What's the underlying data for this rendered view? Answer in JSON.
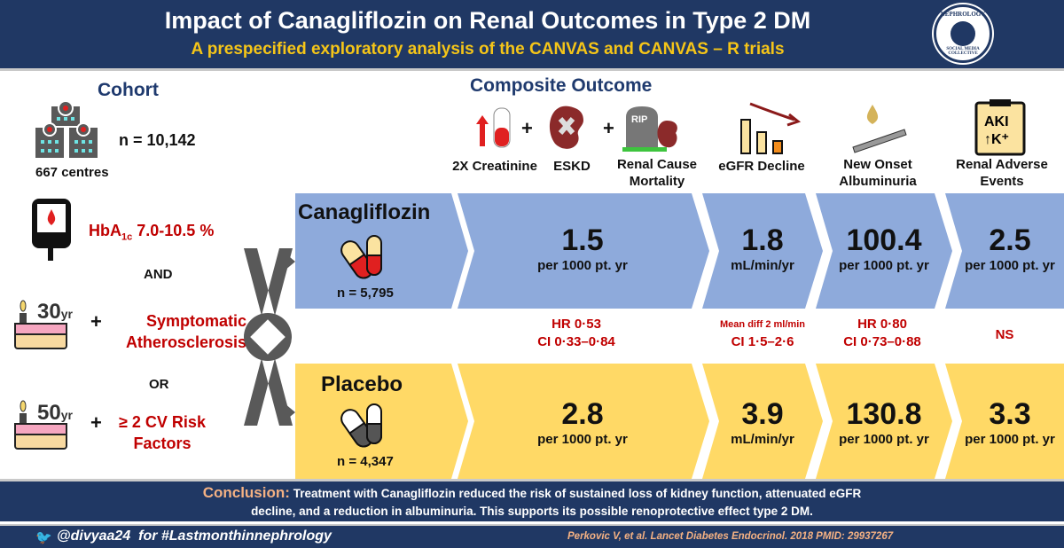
{
  "header": {
    "title": "Impact of Canagliflozin on Renal Outcomes in Type 2 DM",
    "subtitle": "A prespecified exploratory analysis of the CANVAS and CANVAS – R trials",
    "logo_text": "NEPHROLOGY",
    "logo_est": "EST 2015",
    "logo_bottom": "SOCIAL MEDIA COLLECTIVE"
  },
  "cohort": {
    "title": "Cohort",
    "n": "n = 10,142",
    "centres": "667 centres",
    "hba1c_label": "HbA",
    "hba1c_sub": "1c",
    "hba1c_range": "7.0-10.5 %",
    "and": "AND",
    "age1": "30",
    "age_unit": "yr",
    "criterion1": "Symptomatic Atherosclerosis",
    "or": "OR",
    "age2": "50",
    "criterion2": "≥ 2 CV Risk Factors",
    "plus": "+"
  },
  "outcomes": {
    "title": "Composite Outcome",
    "items": [
      "2X Creatinine",
      "ESKD",
      "Renal Cause Mortality",
      "eGFR Decline",
      "New Onset Albuminuria",
      "Renal Adverse Events"
    ],
    "rip": "RIP",
    "aki": "AKI",
    "k": "↑K⁺"
  },
  "arms": [
    {
      "name": "Canagliflozin",
      "n": "n = 5,795",
      "values": [
        {
          "v": "1.5",
          "u": "per 1000 pt. yr"
        },
        {
          "v": "1.8",
          "u": "mL/min/yr"
        },
        {
          "v": "100.4",
          "u": "per 1000 pt. yr"
        },
        {
          "v": "2.5",
          "u": "per 1000 pt. yr"
        }
      ]
    },
    {
      "name": "Placebo",
      "n": "n = 4,347",
      "values": [
        {
          "v": "2.8",
          "u": "per 1000 pt. yr"
        },
        {
          "v": "3.9",
          "u": "mL/min/yr"
        },
        {
          "v": "130.8",
          "u": "per 1000 pt. yr"
        },
        {
          "v": "3.3",
          "u": "per 1000 pt. yr"
        }
      ]
    }
  ],
  "stats": [
    {
      "l1": "HR 0·53",
      "l2": "CI 0·33–0·84"
    },
    {
      "l1": "Mean diff 2 ml/min",
      "l2": "CI 1·5–2·6"
    },
    {
      "l1": "HR 0·80",
      "l2": "CI 0·73–0·88"
    },
    {
      "l1": "NS",
      "l2": ""
    }
  ],
  "footer": {
    "conclusion_label": "Conclusion:",
    "conclusion_l1": "Treatment with Canagliflozin reduced the risk of sustained loss of kidney function, attenuated eGFR",
    "conclusion_l2": "decline, and a reduction in albuminuria. This supports its possible renoprotective effect type 2 DM.",
    "handle": "@divyaa24",
    "hashtag": "for #Lastmonthinnephrology",
    "citation": "Perkovic V, et al. Lancet Diabetes Endocrinol. 2018 PMID: 29937267"
  },
  "colors": {
    "navy": "#203864",
    "blue": "#8eaadb",
    "yellow": "#ffd966",
    "red": "#c00000",
    "accent": "#f5c518"
  }
}
